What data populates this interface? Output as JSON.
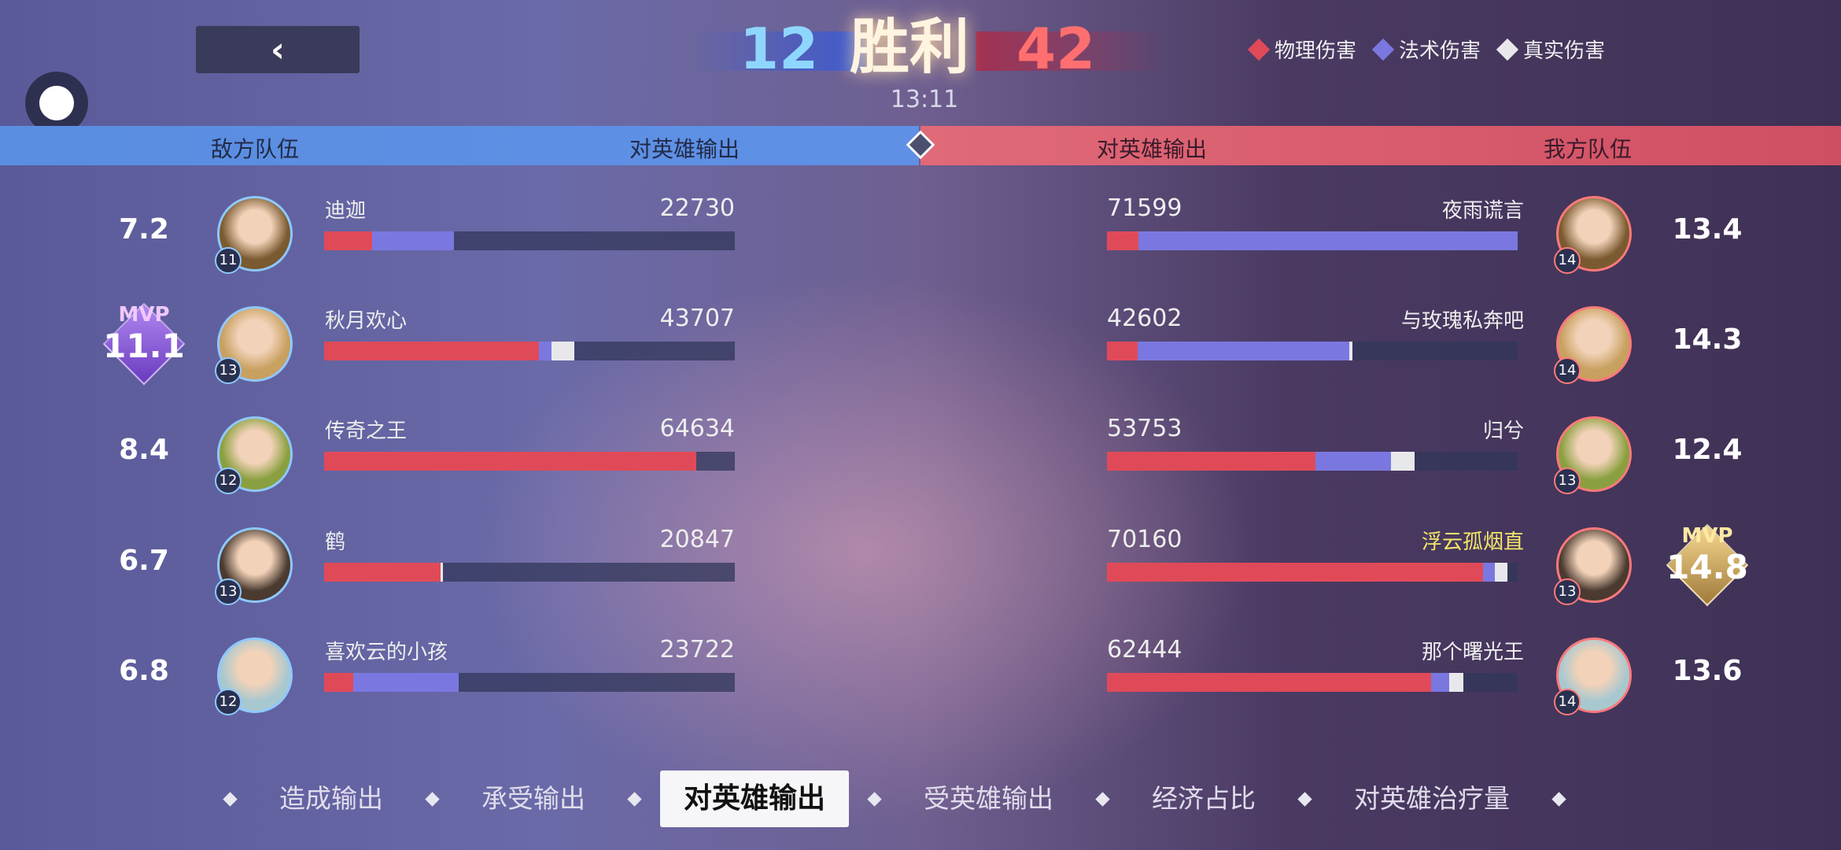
{
  "nav": {
    "back_icon": "chevron-left-icon"
  },
  "header": {
    "kills_enemy": "12",
    "result": "胜利",
    "kills_ally": "42",
    "time": "13:11"
  },
  "legend": [
    {
      "label": "物理伤害",
      "color": "#e04a58"
    },
    {
      "label": "法术伤害",
      "color": "#7a78e0"
    },
    {
      "label": "真实伤害",
      "color": "#e8e8ec"
    }
  ],
  "colors": {
    "physical": "#e04a58",
    "magic": "#7a78e0",
    "true": "#e8e8ec",
    "enemy": "#5f90e6",
    "ally": "#d85566",
    "highlight_name": "#f5e66a"
  },
  "columns": {
    "enemy_team": "敌方队伍",
    "enemy_metric": "对英雄输出",
    "ally_metric": "对英雄输出",
    "ally_team": "我方队伍"
  },
  "max_value": 71599,
  "enemy": [
    {
      "score": "7.2",
      "level": "11",
      "name": "迪迦",
      "value": "22730",
      "bar": [
        0.117,
        0.2,
        0
      ]
    },
    {
      "score": "11.1",
      "mvp": "MVP",
      "level": "13",
      "name": "秋月欢心",
      "value": "43707",
      "bar": [
        0.523,
        0.03,
        0.057
      ]
    },
    {
      "score": "8.4",
      "level": "12",
      "name": "传奇之王",
      "value": "64634",
      "bar": [
        0.906,
        0,
        0
      ]
    },
    {
      "score": "6.7",
      "level": "13",
      "name": "鹤",
      "value": "20847",
      "bar": [
        0.283,
        0,
        0.006
      ]
    },
    {
      "score": "6.8",
      "level": "12",
      "name": "喜欢云的小孩",
      "value": "23722",
      "bar": [
        0.071,
        0.257,
        0
      ]
    }
  ],
  "ally": [
    {
      "score": "13.4",
      "level": "14",
      "name": "夜雨谎言",
      "value": "71599",
      "bar": [
        0.077,
        0.923,
        0
      ]
    },
    {
      "score": "14.3",
      "level": "14",
      "name": "与玫瑰私奔吧",
      "value": "42602",
      "bar": [
        0.074,
        0.517,
        0.006
      ]
    },
    {
      "score": "12.4",
      "level": "13",
      "name": "归兮",
      "value": "53753",
      "bar": [
        0.507,
        0.185,
        0.057
      ]
    },
    {
      "score": "14.8",
      "mvp": "MVP",
      "level": "13",
      "name": "浮云孤烟直",
      "value": "70160",
      "bar": [
        0.915,
        0.03,
        0.03
      ],
      "self": true
    },
    {
      "score": "13.6",
      "level": "14",
      "name": "那个曙光王",
      "value": "62444",
      "bar": [
        0.79,
        0.043,
        0.034
      ]
    }
  ],
  "tabs": [
    {
      "label": "造成输出"
    },
    {
      "label": "承受输出"
    },
    {
      "label": "对英雄输出",
      "active": true
    },
    {
      "label": "受英雄输出"
    },
    {
      "label": "经济占比"
    },
    {
      "label": "对英雄治疗量"
    }
  ]
}
